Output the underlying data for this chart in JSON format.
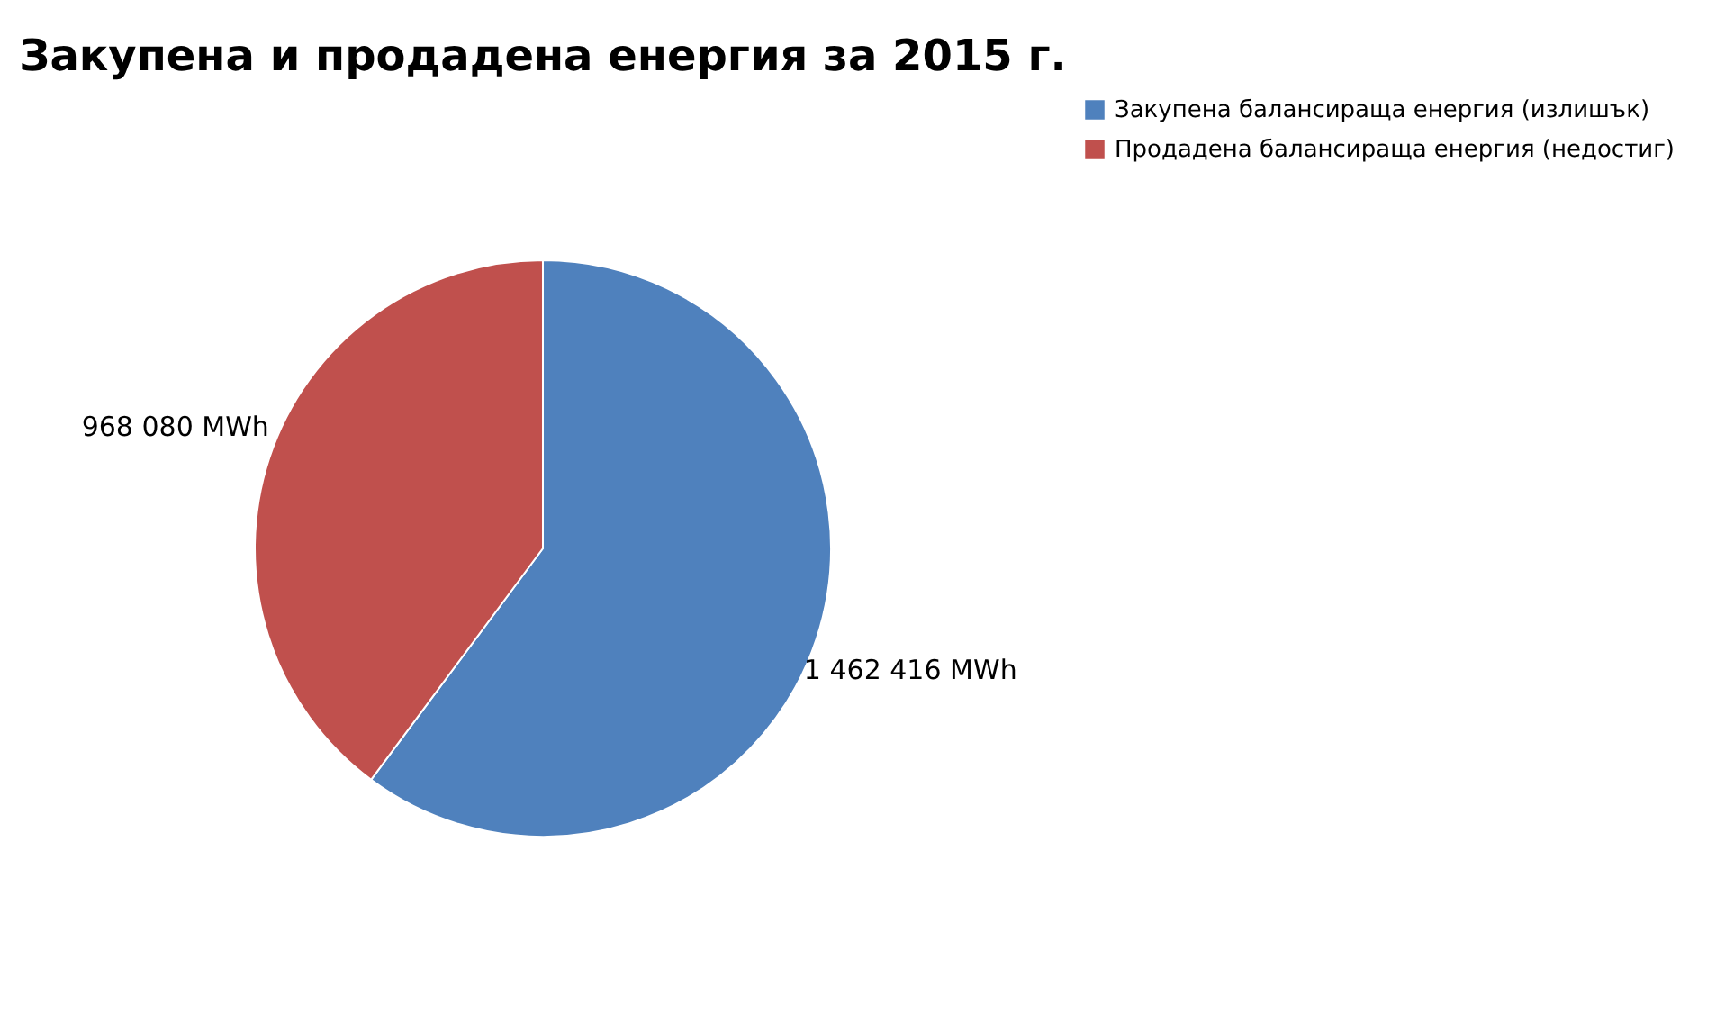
{
  "chart_data": {
    "type": "pie",
    "title": "Закупена и продадена енергия за 2015 г.",
    "categories": [
      "Закупена балансираща енергия (излишък)",
      "Продадена балансираща енергия (недостиг)"
    ],
    "values": [
      1462416,
      968080
    ],
    "colors": [
      "#4f81bd",
      "#c0504d"
    ],
    "value_labels": [
      "1 462 416 MWh",
      "968 080 MWh"
    ],
    "legend": "right"
  }
}
